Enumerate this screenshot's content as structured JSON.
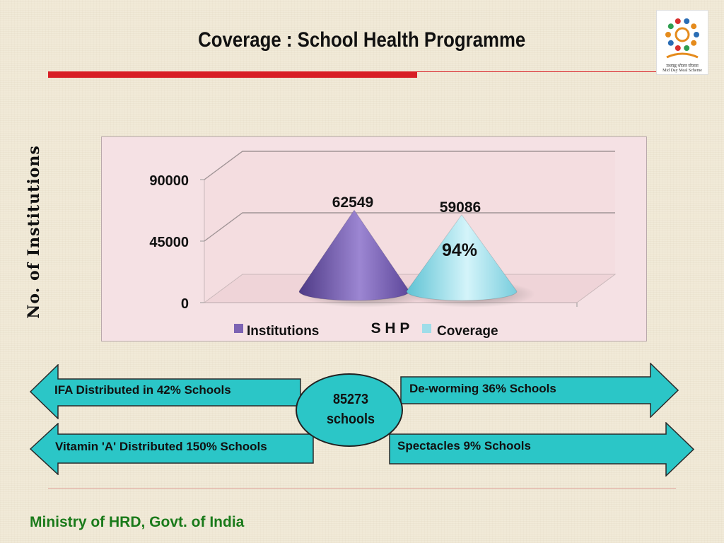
{
  "slide": {
    "title": "Coverage : School Health Programme",
    "footer": "Ministry of HRD, Govt. of India",
    "logo": {
      "icon": "mid-day-meal-logo",
      "caption": "Mid Day Meal Scheme"
    }
  },
  "chart_data": {
    "type": "bar",
    "shape": "cone-3d",
    "title": "",
    "xlabel": "S H P",
    "ylabel": "No. of Institutions",
    "ylim": [
      0,
      90000
    ],
    "yticks": [
      "0",
      "45000",
      "90000"
    ],
    "grid": true,
    "legend_position": "bottom",
    "categories": [
      "S H P"
    ],
    "series": [
      {
        "name": "Institutions",
        "values": [
          62549
        ],
        "data_label": "62549",
        "color": "#7d63b3"
      },
      {
        "name": "Coverage",
        "values": [
          59086
        ],
        "data_label": "59086",
        "color": "#9fdde9"
      }
    ],
    "annotation": "94%"
  },
  "center": {
    "line1": "85273",
    "line2": "schools",
    "color": "#2bc6c7"
  },
  "callouts": [
    {
      "text": "IFA Distributed in 42% Schools",
      "direction": "left"
    },
    {
      "text": "Vitamin 'A' Distributed 150% Schools",
      "direction": "left"
    },
    {
      "text": "De-worming 36% Schools",
      "direction": "right"
    },
    {
      "text": "Spectacles 9% Schools",
      "direction": "right"
    }
  ],
  "colors": {
    "accent_red": "#d81f26",
    "arrow_fill": "#2bc6c7",
    "footer_green": "#1a7a1a"
  }
}
